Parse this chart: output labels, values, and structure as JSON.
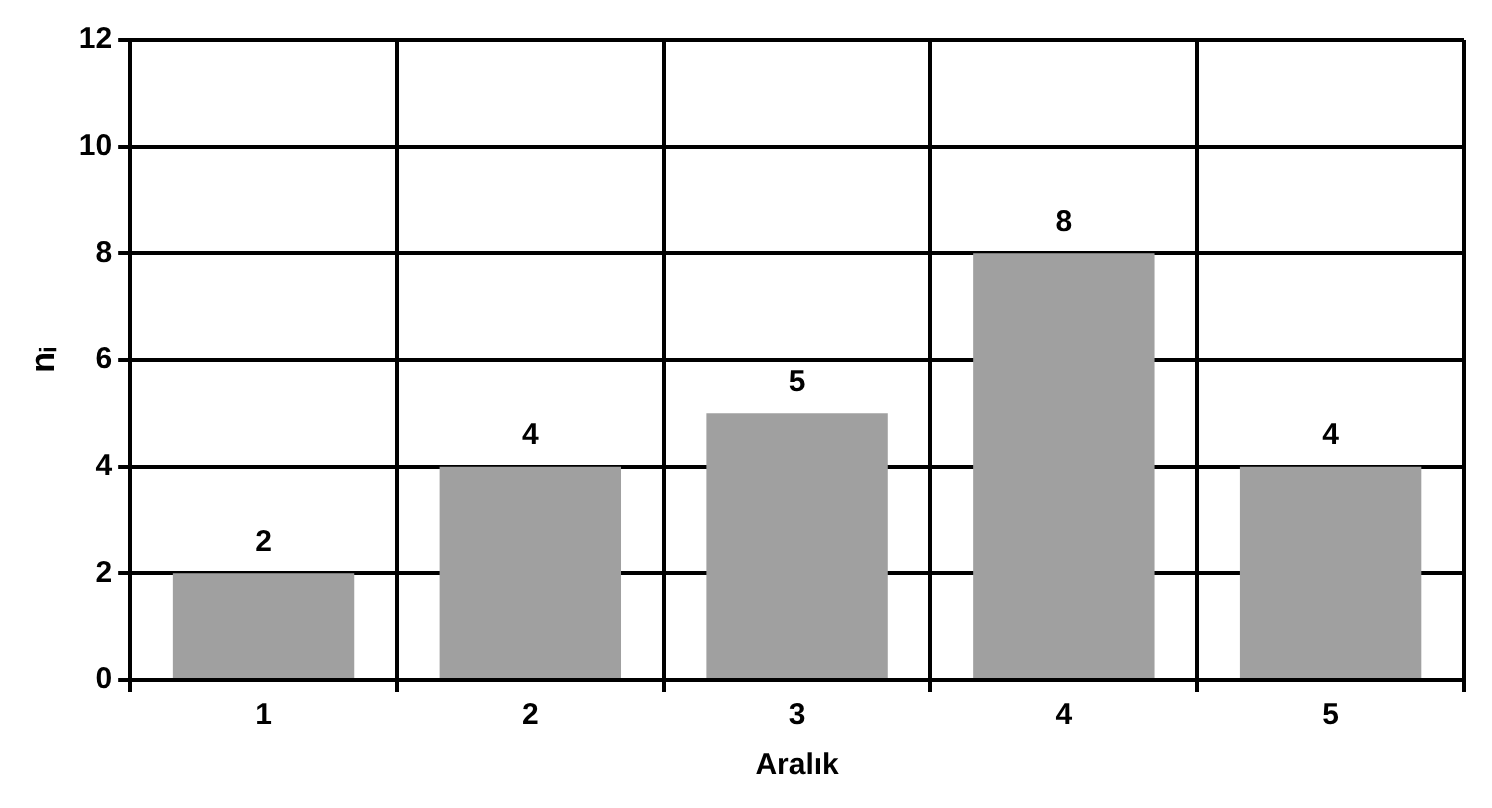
{
  "chart_data": {
    "type": "bar",
    "xlabel": "Aralık",
    "ylabel": "nᵢ",
    "categories": [
      "1",
      "2",
      "3",
      "4",
      "5"
    ],
    "values": [
      2,
      4,
      5,
      8,
      4
    ],
    "color": "#a0a0a0",
    "ylim": [
      0,
      12
    ],
    "yticks": [
      0,
      2,
      4,
      6,
      8,
      10,
      12
    ],
    "grid": true,
    "data_labels": true,
    "legend": false
  }
}
